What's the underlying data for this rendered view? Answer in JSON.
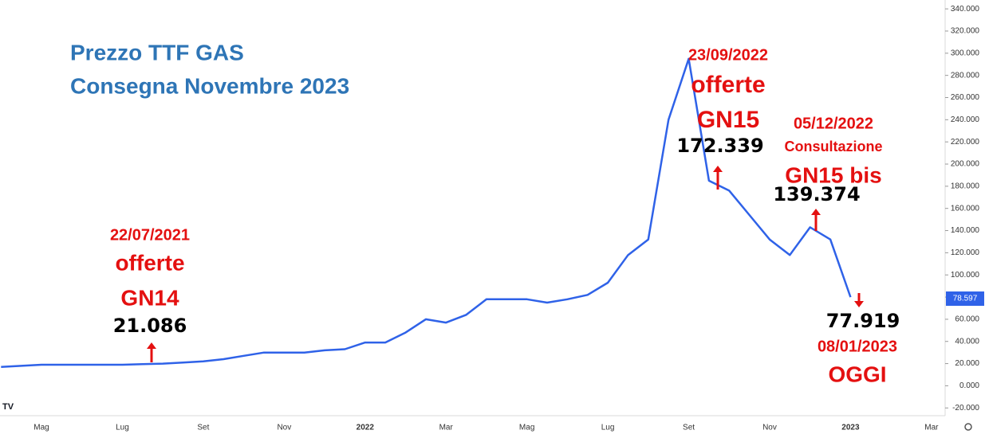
{
  "chart_data": {
    "type": "line",
    "title": [
      "Prezzo TTF GAS",
      "Consegna Novembre 2023"
    ],
    "categories": [
      null,
      null,
      "Mag",
      null,
      null,
      null,
      "Lug",
      null,
      null,
      null,
      "Set",
      null,
      null,
      null,
      "Nov",
      null,
      null,
      null,
      "2022",
      null,
      null,
      null,
      "Mar",
      null,
      null,
      null,
      "Mag",
      null,
      null,
      null,
      "Lug",
      null,
      null,
      null,
      "Set",
      null,
      null,
      null,
      "Nov",
      null,
      null,
      null,
      "2023",
      null,
      null,
      null,
      "Mar"
    ],
    "series": [
      {
        "color": "#2f62e8",
        "values": [
          17,
          18,
          19,
          19,
          19,
          19,
          19,
          19.5,
          20,
          21,
          22,
          24,
          27,
          30,
          30,
          30,
          32,
          33,
          39,
          39,
          48,
          60,
          57,
          64,
          78,
          78,
          78,
          75,
          78,
          82,
          93,
          118,
          132,
          240,
          295,
          185,
          176,
          154,
          132,
          118,
          143,
          132,
          80,
          null,
          null,
          null,
          null
        ]
      }
    ],
    "last_value": 78.597,
    "ylim": [
      -27,
      348
    ],
    "yticks": [
      {
        "value": -20,
        "label": "-20.000"
      },
      {
        "value": 0,
        "label": "0.000"
      },
      {
        "value": 20,
        "label": "20.000"
      },
      {
        "value": 40,
        "label": "40.000"
      },
      {
        "value": 60,
        "label": "60.000"
      },
      {
        "value": 80,
        "label": "80.000"
      },
      {
        "value": 100,
        "label": "100.000"
      },
      {
        "value": 120,
        "label": "120.000"
      },
      {
        "value": 140,
        "label": "140.000"
      },
      {
        "value": 160,
        "label": "160.000"
      },
      {
        "value": 180,
        "label": "180.000"
      },
      {
        "value": 200,
        "label": "200.000"
      },
      {
        "value": 220,
        "label": "220.000"
      },
      {
        "value": 240,
        "label": "240.000"
      },
      {
        "value": 260,
        "label": "260.000"
      },
      {
        "value": 280,
        "label": "280.000"
      },
      {
        "value": 300,
        "label": "300.000"
      },
      {
        "value": 320,
        "label": "320.000"
      },
      {
        "value": 340,
        "label": "340.000"
      }
    ],
    "annotations": [
      {
        "texts": [
          "22/07/2021",
          "offerte",
          "GN14"
        ],
        "price": 21.086
      },
      {
        "texts": [
          "23/09/2022",
          "offerte",
          "GN15"
        ],
        "price": 172.339
      },
      {
        "texts": [
          "05/12/2022",
          "Consultazione",
          "GN15 bis"
        ],
        "price": 139.374
      },
      {
        "texts": [
          "08/01/2023",
          "OGGI"
        ],
        "price": 77.919
      }
    ]
  }
}
